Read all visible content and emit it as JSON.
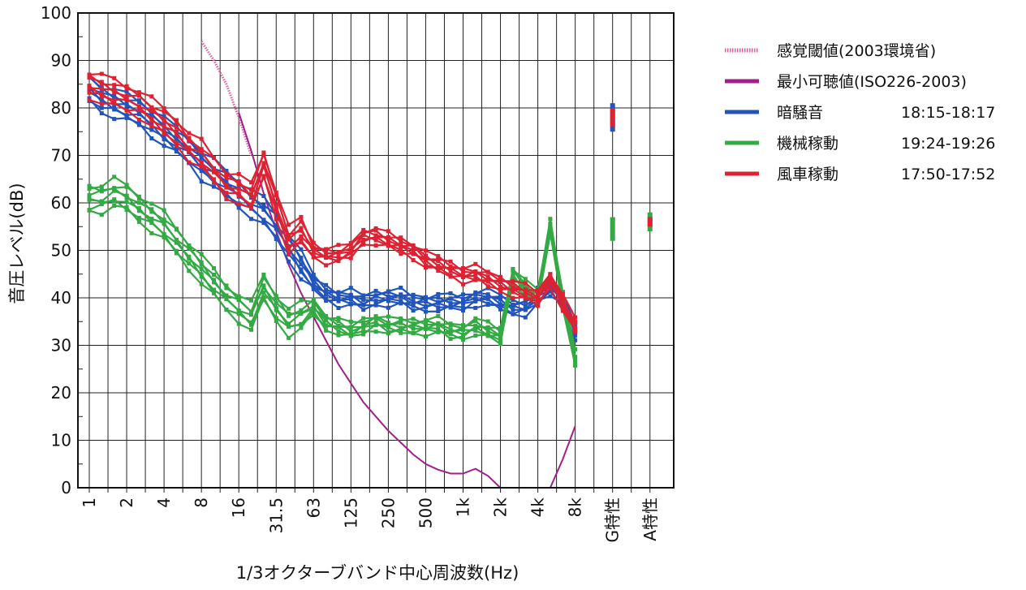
{
  "chart_data": {
    "type": "line",
    "title": "",
    "xlabel": "1/3オクターブバンド中心周波数(Hz)",
    "ylabel": "音圧レベル(dB)",
    "ylim": [
      0,
      100
    ],
    "yticks": [
      "0",
      "10",
      "20",
      "30",
      "40",
      "50",
      "60",
      "70",
      "80",
      "90",
      "100"
    ],
    "xticks": [
      "1",
      "2",
      "4",
      "8",
      "16",
      "31.5",
      "63",
      "125",
      "250",
      "500",
      "1k",
      "2k",
      "4k",
      "8k",
      "G特性",
      "A特性"
    ],
    "grid": true,
    "legend_position": "top-right",
    "bands": [
      "1",
      "1.25",
      "1.6",
      "2",
      "2.5",
      "3.15",
      "4",
      "5",
      "6.3",
      "8",
      "10",
      "12.5",
      "16",
      "20",
      "25",
      "31.5",
      "40",
      "50",
      "63",
      "80",
      "100",
      "125",
      "160",
      "200",
      "250",
      "315",
      "400",
      "500",
      "630",
      "800",
      "1k",
      "1.25k",
      "1.6k",
      "2k",
      "2.5k",
      "3.15k",
      "4k",
      "5k",
      "6.3k",
      "8k"
    ],
    "series": [
      {
        "name": "感覚閾値(2003環境省)",
        "color": "#e060a0",
        "style": "dotted",
        "points": [
          [
            "8",
            94
          ],
          [
            "10",
            90
          ],
          [
            "12.5",
            85
          ],
          [
            "16",
            78
          ],
          [
            "20",
            70
          ]
        ]
      },
      {
        "name": "最小可聴値(ISO226-2003)",
        "color": "#a0208a",
        "style": "solid",
        "points": [
          [
            "16",
            79
          ],
          [
            "20",
            71
          ],
          [
            "25",
            62
          ],
          [
            "31.5",
            54
          ],
          [
            "40",
            47
          ],
          [
            "50",
            41
          ],
          [
            "63",
            36
          ],
          [
            "80",
            31
          ],
          [
            "100",
            26
          ],
          [
            "125",
            22
          ],
          [
            "160",
            18
          ],
          [
            "200",
            15
          ],
          [
            "250",
            12
          ],
          [
            "315",
            9.5
          ],
          [
            "400",
            7
          ],
          [
            "500",
            5
          ],
          [
            "630",
            3.8
          ],
          [
            "800",
            3
          ],
          [
            "1k",
            3
          ],
          [
            "1.25k",
            4
          ],
          [
            "1.6k",
            2.5
          ],
          [
            "2k",
            0
          ],
          [
            "5k",
            0
          ],
          [
            "6.3k",
            6
          ],
          [
            "8k",
            13
          ]
        ]
      },
      {
        "name": "暗騒音",
        "time": "18:15-18:17",
        "color": "#2255bb",
        "base": [
          84,
          82,
          81,
          80,
          79,
          77,
          75,
          73,
          71,
          68,
          66,
          64,
          62,
          60,
          58,
          55,
          51,
          47,
          43,
          41,
          40,
          40,
          39,
          40,
          40,
          40,
          39,
          39,
          39,
          39,
          39,
          40,
          40,
          39,
          38,
          38,
          40,
          42,
          40,
          33
        ],
        "offsets": [
          -3,
          -2,
          -1,
          0,
          1,
          2,
          3
        ],
        "g": [
          75,
          81
        ],
        "a": null
      },
      {
        "name": "機械稼動",
        "time": "19:24-19:26",
        "color": "#33aa44",
        "base": [
          61,
          61,
          62,
          61,
          59,
          57,
          55,
          52,
          49,
          46,
          43,
          40,
          38,
          36,
          42,
          38,
          35,
          36,
          38,
          35,
          34,
          33,
          34,
          35,
          34,
          34,
          34,
          34,
          34,
          33,
          33,
          34,
          33,
          32,
          45,
          42,
          40,
          55,
          40,
          27
        ],
        "offsets": [
          -3,
          -2,
          -1,
          0,
          1,
          2,
          3
        ],
        "g": [
          52,
          57
        ],
        "a": [
          54,
          58
        ]
      },
      {
        "name": "風車稼動",
        "time": "17:50-17:52",
        "color": "#dd2233",
        "base": [
          85,
          84,
          83,
          82,
          81,
          79,
          77,
          75,
          72,
          70,
          67,
          64,
          63,
          61,
          68,
          60,
          52,
          54,
          50,
          49,
          49,
          50,
          53,
          53,
          52,
          51,
          50,
          48,
          47,
          46,
          45,
          45,
          44,
          43,
          42,
          41,
          40,
          44,
          39,
          34
        ],
        "offsets": [
          -3,
          -2,
          -1,
          0,
          1,
          2,
          3
        ],
        "g": [
          76,
          80
        ],
        "a": [
          55,
          57
        ]
      }
    ]
  }
}
